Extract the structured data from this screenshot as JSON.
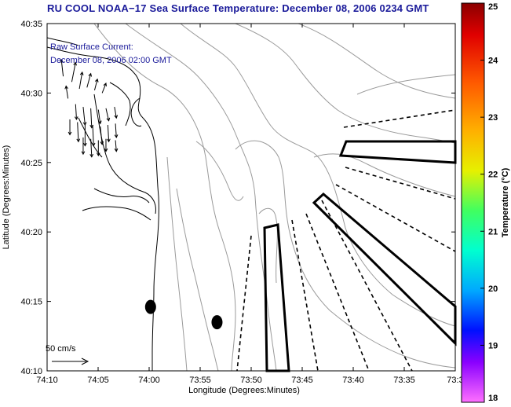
{
  "title": "RU COOL  NOAA−17  Sea Surface Temperature:  December 08, 2006 0234 GMT",
  "annotation_line1": "Raw Surface Current:",
  "annotation_line2": "December 08, 2006 02:00 GMT",
  "scale_label": "50 cm/s",
  "colorbar": {
    "label": "Temperature (°C)",
    "min": 18,
    "max": 25,
    "ticks": [
      "25",
      "24",
      "23",
      "22",
      "21",
      "20",
      "19",
      "18"
    ]
  },
  "chart_data": {
    "type": "map",
    "xlabel": "Longitude (Degrees:Minutes)",
    "ylabel": "Latitude (Degrees:Minutes)",
    "x_ticks": [
      "74:10",
      "74:05",
      "74:00",
      "73:55",
      "73:50",
      "73:45",
      "73:40",
      "73:35",
      "73:3"
    ],
    "y_ticks": [
      "40:35",
      "40:30",
      "40:25",
      "40:20",
      "40:15",
      "40:10"
    ],
    "xlim_min": [
      -70,
      -27
    ],
    "ylim_min": [
      10,
      35
    ],
    "current_vectors": [
      {
        "lon": -68.3,
        "lat": 31.2,
        "u": -0.2,
        "v": 1.2
      },
      {
        "lon": -67.4,
        "lat": 30.8,
        "u": 0.4,
        "v": 1.4
      },
      {
        "lon": -66.6,
        "lat": 30.3,
        "u": 0.3,
        "v": 1.2
      },
      {
        "lon": -65.8,
        "lat": 30.4,
        "u": 0.4,
        "v": 1.0
      },
      {
        "lon": -65.0,
        "lat": 30.2,
        "u": 0.3,
        "v": 0.8
      },
      {
        "lon": -64.2,
        "lat": 30.0,
        "u": 0.4,
        "v": 0.7
      },
      {
        "lon": -67.8,
        "lat": 29.6,
        "u": -0.2,
        "v": 0.9
      },
      {
        "lon": -67.0,
        "lat": 29.2,
        "u": 0.1,
        "v": -1.1
      },
      {
        "lon": -66.2,
        "lat": 29.0,
        "u": 0.2,
        "v": -1.3
      },
      {
        "lon": -65.4,
        "lat": 28.9,
        "u": 0.1,
        "v": -1.4
      },
      {
        "lon": -64.6,
        "lat": 28.8,
        "u": 0.2,
        "v": -1.0
      },
      {
        "lon": -63.8,
        "lat": 28.9,
        "u": 0.3,
        "v": -0.9
      },
      {
        "lon": -62.9,
        "lat": 29.0,
        "u": 0.2,
        "v": -0.8
      },
      {
        "lon": -67.6,
        "lat": 28.1,
        "u": 0.0,
        "v": -1.1
      },
      {
        "lon": -66.8,
        "lat": 27.9,
        "u": 0.1,
        "v": -1.4
      },
      {
        "lon": -66.0,
        "lat": 27.8,
        "u": 0.0,
        "v": -1.6
      },
      {
        "lon": -65.2,
        "lat": 27.7,
        "u": 0.1,
        "v": -1.5
      },
      {
        "lon": -64.4,
        "lat": 27.6,
        "u": 0.2,
        "v": -1.3
      },
      {
        "lon": -63.6,
        "lat": 27.7,
        "u": 0.1,
        "v": -1.2
      },
      {
        "lon": -62.8,
        "lat": 27.8,
        "u": 0.1,
        "v": -1.0
      },
      {
        "lon": -66.2,
        "lat": 26.8,
        "u": 0.0,
        "v": -1.2
      },
      {
        "lon": -65.4,
        "lat": 26.7,
        "u": 0.1,
        "v": -1.3
      },
      {
        "lon": -64.6,
        "lat": 26.6,
        "u": 0.0,
        "v": -1.1
      },
      {
        "lon": -63.8,
        "lat": 26.7,
        "u": 0.0,
        "v": -0.9
      },
      {
        "lon": -62.8,
        "lat": 26.6,
        "u": 0.1,
        "v": -0.8
      }
    ],
    "buoys": [
      {
        "lon": -59.1,
        "lat": 14.6
      },
      {
        "lon": -52.1,
        "lat": 13.5
      }
    ]
  }
}
